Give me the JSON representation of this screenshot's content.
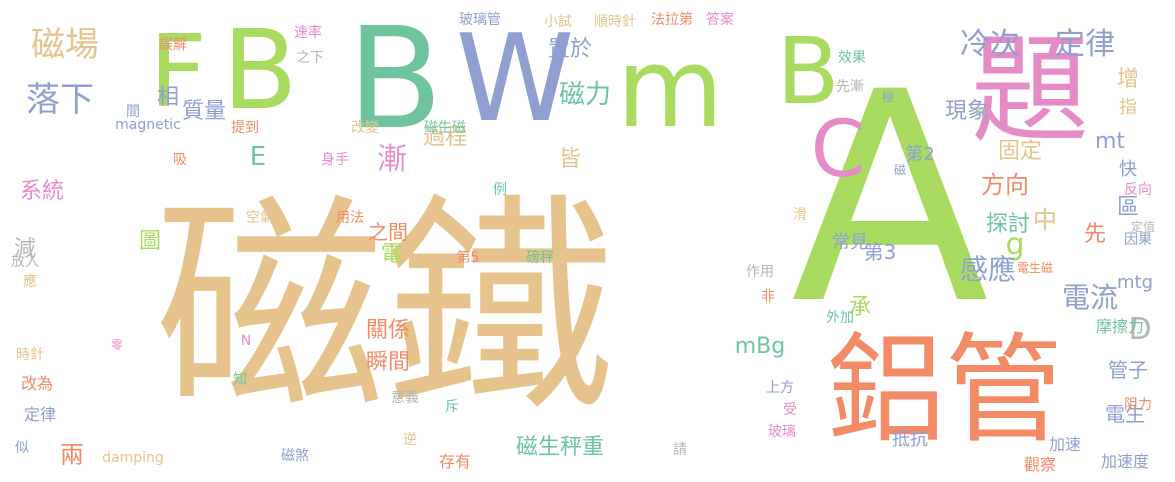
{
  "words": [
    {
      "text": "磁鐵",
      "color": "#e6c38d",
      "vertical": false
    },
    {
      "text": "A",
      "color": "#a8db5f",
      "vertical": false
    },
    {
      "text": "B",
      "color": "#6ec49c",
      "vertical": false
    },
    {
      "text": "W",
      "color": "#8f9fd0",
      "vertical": false
    },
    {
      "text": "m",
      "color": "#a8db5f",
      "vertical": false
    },
    {
      "text": "B",
      "color": "#a8db5f",
      "vertical": false
    },
    {
      "text": "F",
      "color": "#a8db5f",
      "vertical": false
    },
    {
      "text": "B",
      "color": "#a8db5f",
      "vertical": false
    },
    {
      "text": "鋁管",
      "color": "#f28b66",
      "vertical": false
    },
    {
      "text": "題",
      "color": "#e58cc8",
      "vertical": false
    },
    {
      "text": "C",
      "color": "#e58cc8",
      "vertical": false
    },
    {
      "text": "磁場",
      "color": "#e6c38d",
      "vertical": false
    },
    {
      "text": "落下",
      "color": "#8f9fd0",
      "vertical": false
    },
    {
      "text": "冷次",
      "color": "#8f9fd0",
      "vertical": false
    },
    {
      "text": "定律",
      "color": "#8f9fd0",
      "vertical": false
    },
    {
      "text": "磁力",
      "color": "#6ec49c",
      "vertical": false
    },
    {
      "text": "漸",
      "color": "#e58cc8",
      "vertical": false
    },
    {
      "text": "E",
      "color": "#6ec49c",
      "vertical": false
    },
    {
      "text": "D",
      "color": "#b5b5b5",
      "vertical": false
    },
    {
      "text": "g",
      "color": "#a8db5f",
      "vertical": false
    },
    {
      "text": "中",
      "color": "#e6c38d",
      "vertical": false
    },
    {
      "text": "mt",
      "color": "#8f9fd0",
      "vertical": false
    },
    {
      "text": "mtg",
      "color": "#8f9fd0",
      "vertical": false
    },
    {
      "text": "mBg",
      "color": "#6ec49c",
      "vertical": false
    },
    {
      "text": "感應",
      "color": "#8f9fd0",
      "vertical": false
    },
    {
      "text": "電流",
      "color": "#8f9fd0",
      "vertical": false
    },
    {
      "text": "方向",
      "color": "#f28b66",
      "vertical": false
    },
    {
      "text": "現象",
      "color": "#8f9fd0",
      "vertical": false
    },
    {
      "text": "置於",
      "color": "#8f9fd0",
      "vertical": false
    },
    {
      "text": "質量",
      "color": "#8f9fd0",
      "vertical": false
    },
    {
      "text": "過程",
      "color": "#e6c38d",
      "vertical": false
    },
    {
      "text": "固定",
      "color": "#e6c38d",
      "vertical": false
    },
    {
      "text": "皆",
      "color": "#e6c38d",
      "vertical": false
    },
    {
      "text": "探討",
      "color": "#6ec49c",
      "vertical": false
    },
    {
      "text": "系統",
      "color": "#e58cc8",
      "vertical": false
    },
    {
      "text": "減",
      "color": "#b5b5b5",
      "vertical": false
    },
    {
      "text": "圖",
      "color": "#a8db5f",
      "vertical": false
    },
    {
      "text": "兩",
      "color": "#f28b66",
      "vertical": false
    },
    {
      "text": "電",
      "color": "#a8db5f",
      "vertical": false
    },
    {
      "text": "之間",
      "color": "#f28b66",
      "vertical": false
    },
    {
      "text": "關係",
      "color": "#f28b66",
      "vertical": false
    },
    {
      "text": "瞬間",
      "color": "#f28b66",
      "vertical": false
    },
    {
      "text": "磁生秤重",
      "color": "#6ec49c",
      "vertical": false
    },
    {
      "text": "先",
      "color": "#f28b66",
      "vertical": false
    },
    {
      "text": "區",
      "color": "#8f9fd0",
      "vertical": false
    },
    {
      "text": "承",
      "color": "#a8db5f",
      "vertical": false
    },
    {
      "text": "第3",
      "color": "#8f9fd0",
      "vertical": false
    },
    {
      "text": "第2",
      "color": "#8f9fd0",
      "vertical": false
    },
    {
      "text": "常見",
      "color": "#8f9fd0",
      "vertical": false
    },
    {
      "text": "管子",
      "color": "#8f9fd0",
      "vertical": false
    },
    {
      "text": "電生",
      "color": "#8f9fd0",
      "vertical": false
    },
    {
      "text": "加速度",
      "color": "#8f9fd0",
      "vertical": false
    },
    {
      "text": "相",
      "color": "#8f9fd0",
      "vertical": false
    },
    {
      "text": "增",
      "color": "#e6c38d",
      "vertical": false
    },
    {
      "text": "指",
      "color": "#e6c38d",
      "vertical": false
    },
    {
      "text": "快",
      "color": "#8f9fd0",
      "vertical": false
    },
    {
      "text": "反向",
      "color": "#e58cc8",
      "vertical": false
    },
    {
      "text": "因果",
      "color": "#8f9fd0",
      "vertical": false
    },
    {
      "text": "阻力",
      "color": "#f28b66",
      "vertical": false
    },
    {
      "text": "摩擦力",
      "color": "#6ec49c",
      "vertical": false
    },
    {
      "text": "抵抗",
      "color": "#8f9fd0",
      "vertical": false
    },
    {
      "text": "加速",
      "color": "#8f9fd0",
      "vertical": false
    },
    {
      "text": "觀察",
      "color": "#f28b66",
      "vertical": false
    },
    {
      "text": "存有",
      "color": "#f28b66",
      "vertical": false
    },
    {
      "text": "請",
      "color": "#b5b5b5",
      "vertical": false
    },
    {
      "text": "逆",
      "color": "#e6c38d",
      "vertical": false
    },
    {
      "text": "磁煞",
      "color": "#8f9fd0",
      "vertical": false
    },
    {
      "text": "damping",
      "color": "#e6c38d",
      "vertical": false
    },
    {
      "text": "似",
      "color": "#8f9fd0",
      "vertical": false
    },
    {
      "text": "定律",
      "color": "#8f9fd0",
      "vertical": false
    },
    {
      "text": "改為",
      "color": "#f28b66",
      "vertical": false
    },
    {
      "text": "時針",
      "color": "#e6c38d",
      "vertical": false
    },
    {
      "text": "應",
      "color": "#e6c38d",
      "vertical": false
    },
    {
      "text": "放入",
      "color": "#b5b5b5",
      "vertical": false
    },
    {
      "text": "吸",
      "color": "#f28b66",
      "vertical": false
    },
    {
      "text": "間",
      "color": "#8f9fd0",
      "vertical": false
    },
    {
      "text": "誤解",
      "color": "#f28b66",
      "vertical": false
    },
    {
      "text": "速率",
      "color": "#e58cc8",
      "vertical": false
    },
    {
      "text": "之下",
      "color": "#b5b5b5",
      "vertical": false
    },
    {
      "text": "玻璃管",
      "color": "#8f9fd0",
      "vertical": false
    },
    {
      "text": "小試",
      "color": "#e6c38d",
      "vertical": false
    },
    {
      "text": "順時針",
      "color": "#e6c38d",
      "vertical": false
    },
    {
      "text": "法拉第",
      "color": "#f28b66",
      "vertical": false
    },
    {
      "text": "答案",
      "color": "#e58cc8",
      "vertical": false
    },
    {
      "text": "效果",
      "color": "#6ec49c",
      "vertical": false
    },
    {
      "text": "先漸",
      "color": "#b5b5b5",
      "vertical": false
    },
    {
      "text": "極",
      "color": "#8f9fd0",
      "vertical": false
    },
    {
      "text": "現",
      "color": "#b5b5b5",
      "vertical": false
    },
    {
      "text": "magnetic",
      "color": "#8f9fd0",
      "vertical": false
    },
    {
      "text": "提到",
      "color": "#f28b66",
      "vertical": false
    },
    {
      "text": "改變",
      "color": "#e6c38d",
      "vertical": false
    },
    {
      "text": "磁生磁",
      "color": "#6ec49c",
      "vertical": false
    },
    {
      "text": "身手",
      "color": "#e58cc8",
      "vertical": false
    },
    {
      "text": "例",
      "color": "#6ec49c",
      "vertical": false
    },
    {
      "text": "空氣",
      "color": "#e6c38d",
      "vertical": false
    },
    {
      "text": "用法",
      "color": "#f28b66",
      "vertical": false
    },
    {
      "text": "第5",
      "color": "#f28b66",
      "vertical": false
    },
    {
      "text": "磅秤",
      "color": "#6ec49c",
      "vertical": false
    },
    {
      "text": "作用",
      "color": "#b5b5b5",
      "vertical": false
    },
    {
      "text": "非",
      "color": "#f28b66",
      "vertical": false
    },
    {
      "text": "滑",
      "color": "#e6c38d",
      "vertical": false
    },
    {
      "text": "電生磁",
      "color": "#f28b66",
      "vertical": false
    },
    {
      "text": "定值",
      "color": "#b5b5b5",
      "vertical": false
    },
    {
      "text": "磁",
      "color": "#8f9fd0",
      "vertical": false
    },
    {
      "text": "外加",
      "color": "#6ec49c",
      "vertical": false
    },
    {
      "text": "上方",
      "color": "#8f9fd0",
      "vertical": false
    },
    {
      "text": "受",
      "color": "#e58cc8",
      "vertical": false
    },
    {
      "text": "玻璃",
      "color": "#e58cc8",
      "vertical": false
    },
    {
      "text": "意義",
      "color": "#b5b5b5",
      "vertical": false
    },
    {
      "text": "斥",
      "color": "#6ec49c",
      "vertical": false
    },
    {
      "text": "知",
      "color": "#6ec49c",
      "vertical": false
    },
    {
      "text": "N",
      "color": "#e58cc8",
      "vertical": false
    },
    {
      "text": "零",
      "color": "#e58cc8",
      "vertical": false
    }
  ]
}
